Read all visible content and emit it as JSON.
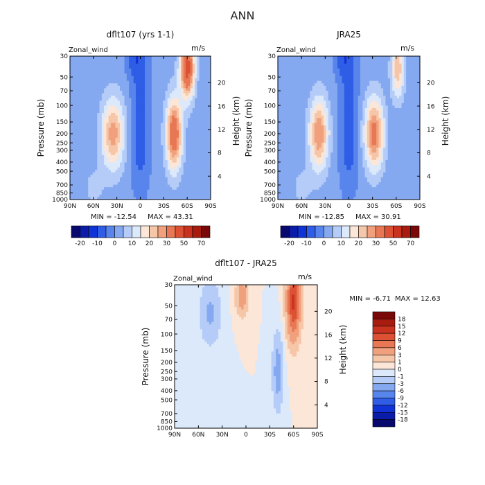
{
  "figure_title": "ANN",
  "chart_data": [
    {
      "type": "heatmap",
      "id": "p1",
      "title": "dflt107 (yrs 1-1)",
      "variable_label": "Zonal_wind",
      "units": "m/s",
      "ylabel": "Pressure (mb)",
      "y2label": "Height (km)",
      "x_ticks": [
        "90N",
        "60N",
        "30N",
        "0",
        "30S",
        "60S",
        "90S"
      ],
      "x_range": [
        90,
        -90
      ],
      "y_ticks": [
        "30",
        "50",
        "70",
        "100",
        "150",
        "200",
        "250",
        "300",
        "400",
        "500",
        "700",
        "850",
        "1000"
      ],
      "y_tick_values": [
        30,
        50,
        70,
        100,
        150,
        200,
        250,
        300,
        400,
        500,
        700,
        850,
        1000
      ],
      "y_range": [
        30,
        1000
      ],
      "y2_ticks": [
        "4",
        "8",
        "12",
        "16",
        "20"
      ],
      "y2_tick_values": [
        4,
        8,
        12,
        16,
        20
      ],
      "min_label": "MIN = -12.54",
      "max_label": "MAX = 43.31",
      "jets": [
        {
          "lat": 35,
          "p": 200,
          "peak": 26,
          "w_lat": 14,
          "w_z": 6
        },
        {
          "lat": -43,
          "p": 200,
          "peak": 36,
          "w_lat": 10,
          "w_z": 6
        },
        {
          "lat": -60,
          "p": 40,
          "peak": 43,
          "w_lat": 9,
          "w_z": 5
        }
      ],
      "colorbar_labels": [
        "-20",
        "-10",
        "0",
        "10",
        "20",
        "30",
        "50",
        "70"
      ],
      "colorbar_colors": [
        "#08086e",
        "#0a1ca8",
        "#1033d6",
        "#2f5de6",
        "#5885ec",
        "#85a9f1",
        "#b4ccf7",
        "#dce9fb",
        "#fbe6d8",
        "#f6c6a8",
        "#f0a07c",
        "#e87854",
        "#dc5033",
        "#c8321e",
        "#a81c10",
        "#7a0808"
      ]
    },
    {
      "type": "heatmap",
      "id": "p2",
      "title": "JRA25",
      "variable_label": "Zonal_wind",
      "units": "m/s",
      "ylabel": "Pressure (mb)",
      "y2label": "Height (km)",
      "x_ticks": [
        "90N",
        "60N",
        "30N",
        "0",
        "30S",
        "60S",
        "90S"
      ],
      "x_range": [
        90,
        -90
      ],
      "y_ticks": [
        "30",
        "50",
        "70",
        "100",
        "150",
        "200",
        "250",
        "300",
        "400",
        "500",
        "700",
        "850",
        "1000"
      ],
      "y_tick_values": [
        30,
        50,
        70,
        100,
        150,
        200,
        250,
        300,
        400,
        500,
        700,
        850,
        1000
      ],
      "y_range": [
        30,
        1000
      ],
      "y2_ticks": [
        "4",
        "8",
        "12",
        "16",
        "20"
      ],
      "y2_tick_values": [
        4,
        8,
        12,
        16,
        20
      ],
      "min_label": "MIN = -12.85",
      "max_label": "MAX = 30.91",
      "jets": [
        {
          "lat": 38,
          "p": 200,
          "peak": 28,
          "w_lat": 12,
          "w_z": 6
        },
        {
          "lat": -32,
          "p": 200,
          "peak": 31,
          "w_lat": 12,
          "w_z": 6
        },
        {
          "lat": -62,
          "p": 40,
          "peak": 22,
          "w_lat": 8,
          "w_z": 5
        }
      ],
      "colorbar_labels": [
        "-20",
        "-10",
        "0",
        "10",
        "20",
        "30",
        "50",
        "70"
      ],
      "colorbar_colors": [
        "#08086e",
        "#0a1ca8",
        "#1033d6",
        "#2f5de6",
        "#5885ec",
        "#85a9f1",
        "#b4ccf7",
        "#dce9fb",
        "#fbe6d8",
        "#f6c6a8",
        "#f0a07c",
        "#e87854",
        "#dc5033",
        "#c8321e",
        "#a81c10",
        "#7a0808"
      ]
    },
    {
      "type": "heatmap",
      "id": "p3",
      "title": "dflt107 - JRA25",
      "variable_label": "Zonal_wind",
      "units": "m/s",
      "ylabel": "Pressure (mb)",
      "y2label": "Height (km)",
      "x_ticks": [
        "90N",
        "60N",
        "30N",
        "0",
        "30S",
        "60S",
        "90S"
      ],
      "x_range": [
        90,
        -90
      ],
      "y_ticks": [
        "30",
        "50",
        "70",
        "100",
        "150",
        "200",
        "250",
        "300",
        "400",
        "500",
        "700",
        "850",
        "1000"
      ],
      "y_tick_values": [
        30,
        50,
        70,
        100,
        150,
        200,
        250,
        300,
        400,
        500,
        700,
        850,
        1000
      ],
      "y_range": [
        30,
        1000
      ],
      "y2_ticks": [
        "4",
        "8",
        "12",
        "16",
        "20"
      ],
      "y2_tick_values": [
        4,
        8,
        12,
        16,
        20
      ],
      "min_label": "MIN =   -6.71",
      "max_label": "MAX =   12.63",
      "jets": [
        {
          "lat": -60,
          "p": 45,
          "peak": 12.6,
          "w_lat": 8,
          "w_z": 6
        },
        {
          "lat": 5,
          "p": 40,
          "peak": 5,
          "w_lat": 7,
          "w_z": 3
        },
        {
          "lat": -40,
          "p": 250,
          "peak": -4.5,
          "w_lat": 6,
          "w_z": 6
        },
        {
          "lat": 45,
          "p": 60,
          "peak": -3.5,
          "w_lat": 12,
          "w_z": 5
        }
      ],
      "colorbar_labels": [
        "18",
        "15",
        "12",
        "9",
        "6",
        "3",
        "1",
        "0",
        "-1",
        "-3",
        "-6",
        "-9",
        "-12",
        "-15",
        "-18"
      ],
      "colorbar_colors": [
        "#7a0808",
        "#a81c10",
        "#c8321e",
        "#dc5033",
        "#e87854",
        "#f0a07c",
        "#f6c6a8",
        "#fbe6d8",
        "#dce9fb",
        "#b4ccf7",
        "#85a9f1",
        "#5885ec",
        "#2f5de6",
        "#1033d6",
        "#0a1ca8",
        "#08086e"
      ]
    }
  ]
}
